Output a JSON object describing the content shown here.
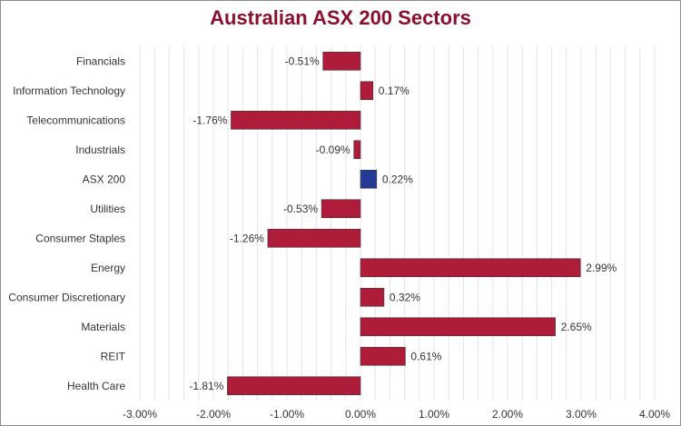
{
  "chart_data": {
    "type": "bar",
    "orientation": "horizontal",
    "title": "Australian ASX 200 Sectors",
    "xlabel": "",
    "ylabel": "",
    "categories": [
      "Financials",
      "Information Technology",
      "Telecommunications",
      "Industrials",
      "ASX 200",
      "Utilities",
      "Consumer Staples",
      "Energy",
      "Consumer Discretionary",
      "Materials",
      "REIT",
      "Health Care"
    ],
    "values": [
      -0.51,
      0.17,
      -1.76,
      -0.09,
      0.22,
      -0.53,
      -1.26,
      2.99,
      0.32,
      2.65,
      0.61,
      -1.81
    ],
    "value_labels": [
      "-0.51%",
      "0.17%",
      "-1.76%",
      "-0.09%",
      "0.22%",
      "-0.53%",
      "-1.26%",
      "2.99%",
      "0.32%",
      "2.65%",
      "0.61%",
      "-1.81%"
    ],
    "bar_colors": [
      "#ae1c3a",
      "#ae1c3a",
      "#ae1c3a",
      "#ae1c3a",
      "#233b96",
      "#ae1c3a",
      "#ae1c3a",
      "#ae1c3a",
      "#ae1c3a",
      "#ae1c3a",
      "#ae1c3a",
      "#ae1c3a"
    ],
    "xlim": [
      -3,
      4
    ],
    "x_ticks": [
      -3,
      -2,
      -1,
      0,
      1,
      2,
      3,
      4
    ],
    "x_tick_labels": [
      "-3.00%",
      "-2.00%",
      "-1.00%",
      "0.00%",
      "1.00%",
      "2.00%",
      "3.00%",
      "4.00%"
    ],
    "grid": true,
    "legend": "none",
    "colors": {
      "title": "#8b0f2e",
      "sector": "#ae1c3a",
      "index": "#233b96",
      "grid": "#e4e4e4"
    }
  }
}
